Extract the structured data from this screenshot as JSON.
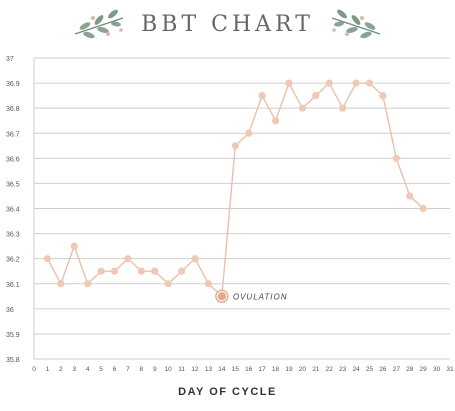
{
  "title": "BBT CHART",
  "chart_data": {
    "type": "line",
    "title": "BBT CHART",
    "xlabel": "DAY OF CYCLE",
    "ylabel": "",
    "xlim": [
      0,
      31
    ],
    "ylim": [
      35.8,
      37
    ],
    "xticks": [
      0,
      1,
      2,
      3,
      4,
      5,
      6,
      7,
      8,
      9,
      10,
      11,
      12,
      13,
      14,
      15,
      16,
      17,
      18,
      19,
      20,
      21,
      22,
      23,
      24,
      25,
      26,
      27,
      28,
      29,
      30,
      31
    ],
    "yticks": [
      "35.8",
      "35.9",
      "36",
      "36.1",
      "36.2",
      "36.3",
      "36.4",
      "36.5",
      "36.6",
      "36.7",
      "36.8",
      "36.9",
      "37"
    ],
    "grid": true,
    "series": [
      {
        "x": [
          1,
          2,
          3,
          4,
          5,
          6,
          7,
          8,
          9,
          10,
          11,
          12,
          13,
          14,
          15,
          16,
          17,
          18,
          19,
          20,
          21,
          22,
          23,
          24,
          25,
          26,
          27,
          28,
          29
        ],
        "y": [
          36.2,
          36.1,
          36.25,
          36.1,
          36.15,
          36.15,
          36.2,
          36.15,
          36.15,
          36.1,
          36.15,
          36.2,
          36.1,
          36.05,
          36.65,
          36.7,
          36.85,
          36.75,
          36.9,
          36.8,
          36.85,
          36.9,
          36.8,
          36.9,
          36.9,
          36.85,
          36.6,
          36.45,
          36.4
        ]
      }
    ],
    "annotations": [
      {
        "text": "OVULATION",
        "x": 14,
        "y": 36.05
      }
    ],
    "colors": {
      "line": "#e8c0ac",
      "marker": "#f0c8b6",
      "highlight": "#e6a890",
      "grid": "#cfcfcf",
      "tick": "#555555"
    }
  },
  "icons": {
    "left": "olive-branch-icon",
    "right": "olive-branch-icon"
  }
}
